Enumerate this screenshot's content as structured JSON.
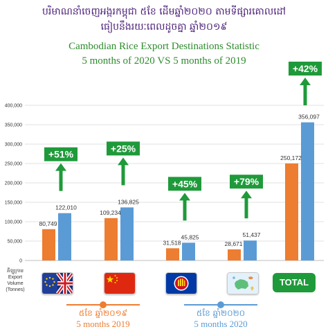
{
  "title": {
    "khmer_line1": "បរិមាណនាំចេញអង្ករកម្ពុជា ៥ខែ ដើមឆ្នាំ២០២០ តាមទីផ្សារគោលដៅ",
    "khmer_line2": "ធៀបនឹងរយៈពេលដូចគ្នា ឆ្នាំ២០១៩",
    "english_line1": "Cambodian Rice Export Destinations Statistic",
    "english_line2": "5 months of 2020 VS 5 months of 2019"
  },
  "y_axis_label": {
    "khmer": "គីឡូក្រាម",
    "english": "Export Volume (Tonnes)"
  },
  "legend": {
    "y2019_khmer": "៥ខែ ឆ្នាំ២០១៩",
    "y2019_english": "5 months 2019",
    "y2020_khmer": "៥ខែ ឆ្នាំ២០២០",
    "y2020_english": "5 months 2020"
  },
  "categories_icons": [
    "eu-uk-flag-icon",
    "china-flag-icon",
    "asean-flag-icon",
    "oceania-map-icon",
    "total-badge"
  ],
  "total_label": "TOTAL",
  "colors": {
    "y2019": "#ed7d31",
    "y2020": "#5b9bd5",
    "growth": "#1f9a3a",
    "grid": "#d9d9d9"
  },
  "chart_data": {
    "type": "bar",
    "categories": [
      "EU & UK",
      "China",
      "ASEAN",
      "Others",
      "TOTAL"
    ],
    "series": [
      {
        "name": "5 months 2019",
        "values": [
          80749,
          109234,
          31518,
          28671,
          250172
        ]
      },
      {
        "name": "5 months 2020",
        "values": [
          122010,
          136825,
          45825,
          51437,
          356097
        ]
      }
    ],
    "data_labels_2019": [
      "80,749",
      "109,234",
      "31,518",
      "28,671",
      "250,172"
    ],
    "data_labels_2020": [
      "122,010",
      "136,825",
      "45,825",
      "51,437",
      "356,097"
    ],
    "growth_labels": [
      "+51%",
      "+25%",
      "+45%",
      "+79%",
      "+42%"
    ],
    "ylim": [
      0,
      400000
    ],
    "yticks": [
      0,
      50000,
      100000,
      150000,
      200000,
      250000,
      300000,
      350000,
      400000
    ],
    "ytick_labels": [
      "0",
      "50,000",
      "100,000",
      "150,000",
      "200,000",
      "250,000",
      "300,000",
      "350,000",
      "400,000"
    ],
    "grid": true
  }
}
